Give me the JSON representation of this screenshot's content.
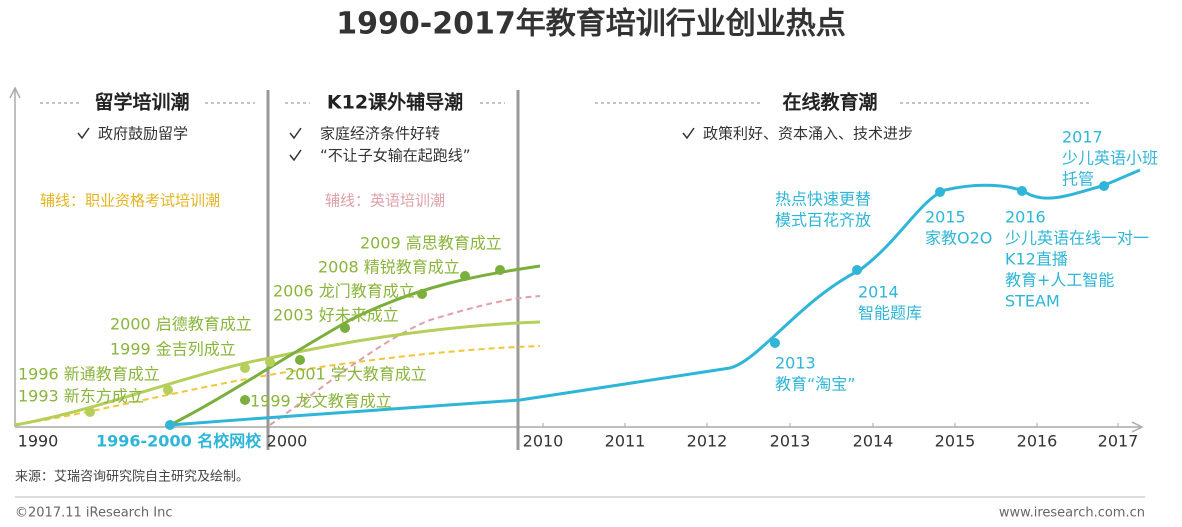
{
  "title": "1990-2017年教育培训行业创业热点",
  "phases": [
    {
      "title": "留学培训潮",
      "points": [
        "政府鼓励留学"
      ],
      "side_line": "辅线：职业资格考试培训潮"
    },
    {
      "title": "K12课外辅导潮",
      "points": [
        "家庭经济条件好转",
        "“不让子女输在起跑线”"
      ],
      "side_line": "辅线：英语培训潮"
    },
    {
      "title": "在线教育潮",
      "points": [
        "政策利好、资本涌入、技术进步"
      ]
    }
  ],
  "axis_labels": [
    "1990",
    "1996-2000 名校网校",
    "2000",
    "2010",
    "2011",
    "2012",
    "2013",
    "2014",
    "2015",
    "2016",
    "2017"
  ],
  "offline_events": [
    "1993 新东方成立",
    "1996 新通教育成立",
    "1999 金吉列成立",
    "2000 启德教育成立",
    "1999 龙文教育成立",
    "2001 学大教育成立",
    "2003 好未来成立",
    "2006 龙门教育成立",
    "2008 精锐教育成立",
    "2009 高思教育成立"
  ],
  "online_events": [
    {
      "lines": [
        "2013",
        "教育“淘宝”"
      ]
    },
    {
      "lines": [
        "2014",
        "智能题库"
      ]
    },
    {
      "lines": [
        "2015",
        "家教O2O"
      ]
    },
    {
      "lines": [
        "热点快速更替",
        "模式百花齐放"
      ]
    },
    {
      "lines": [
        "2016",
        "少儿英语在线一对一",
        "K12直播",
        "教育+人工智能",
        "STEAM"
      ]
    },
    {
      "lines": [
        "2017",
        "少儿英语小班",
        "托管"
      ]
    }
  ],
  "source": "来源：艾瑞咨询研究院自主研究及绘制。",
  "footer_left": "©2017.11 iResearch Inc",
  "footer_right": "www.iresearch.com.cn"
}
